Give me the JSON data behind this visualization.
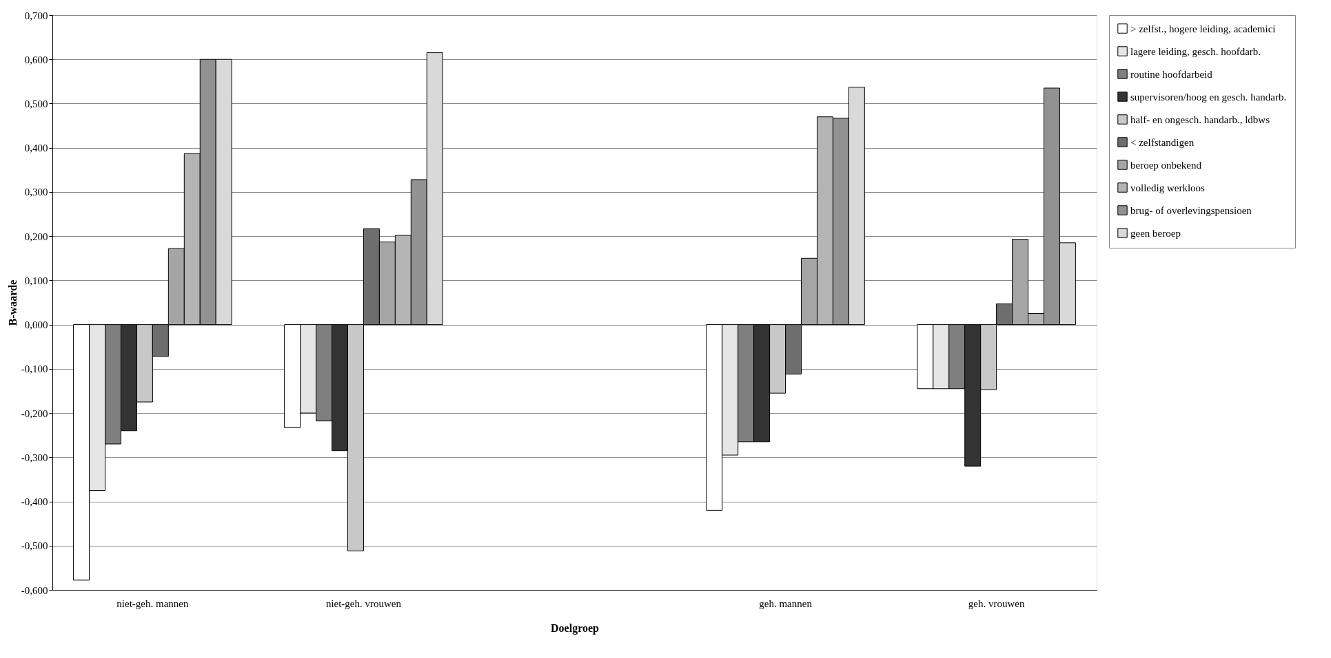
{
  "chart_data": {
    "type": "bar",
    "xlabel": "Doelgroep",
    "ylabel": "B-waarde",
    "categories": [
      "niet-geh. mannen",
      "niet-geh. vrouwen",
      null,
      "geh. mannen",
      "geh. vrouwen"
    ],
    "series": [
      {
        "name": "> zelfst., hogere leiding, academici",
        "color": "#ffffff",
        "values": [
          -0.578,
          -0.233,
          null,
          -0.42,
          -0.145
        ]
      },
      {
        "name": "lagere leiding, gesch. hoofdarb.",
        "color": "#e6e6e6",
        "values": [
          -0.375,
          -0.2,
          null,
          -0.295,
          -0.145
        ]
      },
      {
        "name": "routine hoofdarbeid",
        "color": "#7f7f7f",
        "values": [
          -0.27,
          -0.218,
          null,
          -0.265,
          -0.145
        ]
      },
      {
        "name": "supervisoren/hoog en gesch. handarb.",
        "color": "#333333",
        "values": [
          -0.24,
          -0.285,
          null,
          -0.265,
          -0.32
        ]
      },
      {
        "name": "half- en ongesch. handarb., ldbws",
        "color": "#c8c8c8",
        "values": [
          -0.175,
          -0.512,
          null,
          -0.155,
          -0.147
        ]
      },
      {
        "name": "< zelfstandigen",
        "color": "#6e6e6e",
        "values": [
          -0.072,
          0.217,
          null,
          -0.112,
          0.047
        ]
      },
      {
        "name": "beroep onbekend",
        "color": "#a5a5a5",
        "values": [
          0.172,
          0.187,
          null,
          0.15,
          0.193
        ]
      },
      {
        "name": "volledig werkloos",
        "color": "#b4b4b4",
        "values": [
          0.387,
          0.202,
          null,
          0.47,
          0.025
        ]
      },
      {
        "name": "brug- of overlevingspensioen",
        "color": "#929292",
        "values": [
          0.6,
          0.328,
          null,
          0.467,
          0.535
        ]
      },
      {
        "name": "geen beroep",
        "color": "#d9d9d9",
        "values": [
          0.6,
          0.615,
          null,
          0.537,
          0.185
        ]
      }
    ],
    "ylim": [
      -0.6,
      0.7
    ],
    "yticks": [
      {
        "value": -0.6,
        "label": "-0,600"
      },
      {
        "value": -0.5,
        "label": "-0,500"
      },
      {
        "value": -0.4,
        "label": "-0,400"
      },
      {
        "value": -0.3,
        "label": "-0,300"
      },
      {
        "value": -0.2,
        "label": "-0,200"
      },
      {
        "value": -0.1,
        "label": "-0,100"
      },
      {
        "value": 0,
        "label": "0,000"
      },
      {
        "value": 0.1,
        "label": "0,100"
      },
      {
        "value": 0.2,
        "label": "0,200"
      },
      {
        "value": 0.3,
        "label": "0,300"
      },
      {
        "value": 0.4,
        "label": "0,400"
      },
      {
        "value": 0.5,
        "label": "0,500"
      },
      {
        "value": 0.6,
        "label": "0,600"
      },
      {
        "value": 0.7,
        "label": "0,700"
      }
    ],
    "grid": "y",
    "legend": "right"
  }
}
